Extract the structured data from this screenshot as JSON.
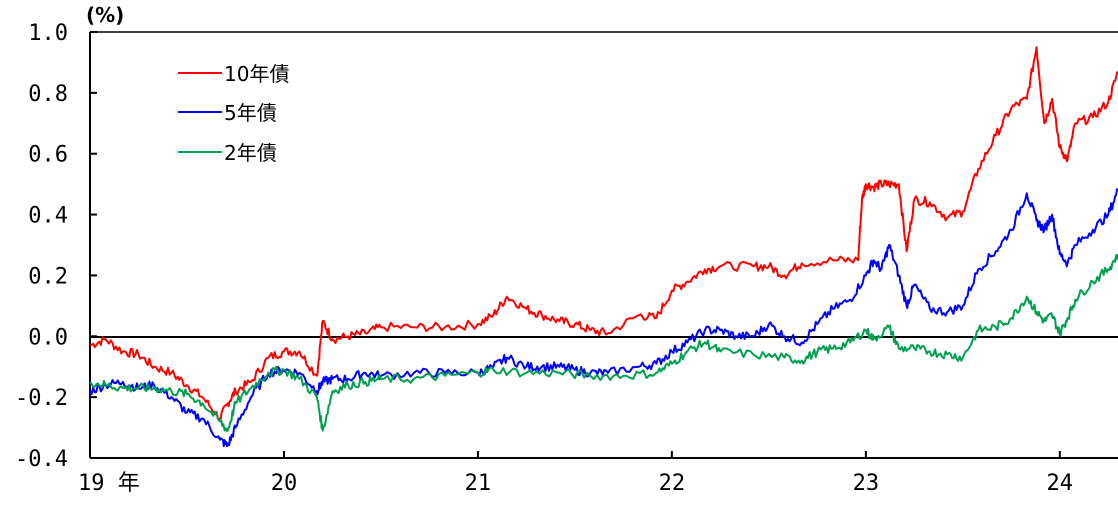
{
  "chart_data": {
    "type": "line",
    "ylabel": "(%)",
    "xlabel": "",
    "ylim": [
      -0.4,
      1.0
    ],
    "yticks": [
      "1.0",
      "0.8",
      "0.6",
      "0.4",
      "0.2",
      "0.0",
      "-0.2",
      "-0.4"
    ],
    "xlim": [
      2019.0,
      2024.3
    ],
    "xticks": [
      "19 年",
      "20",
      "21",
      "22",
      "23",
      "24"
    ],
    "grid": false,
    "zero_line": true,
    "legend_position": "top-left",
    "series": [
      {
        "name": "10年債",
        "color": "#ff0000",
        "x": [
          2019.0,
          2019.08,
          2019.17,
          2019.25,
          2019.33,
          2019.42,
          2019.5,
          2019.58,
          2019.67,
          2019.71,
          2019.75,
          2019.83,
          2019.92,
          2020.0,
          2020.08,
          2020.17,
          2020.2,
          2020.25,
          2020.33,
          2020.42,
          2020.5,
          2020.67,
          2020.83,
          2021.0,
          2021.08,
          2021.15,
          2021.25,
          2021.33,
          2021.42,
          2021.5,
          2021.58,
          2021.67,
          2021.83,
          2021.92,
          2022.0,
          2022.08,
          2022.17,
          2022.25,
          2022.42,
          2022.5,
          2022.58,
          2022.67,
          2022.83,
          2022.96,
          2022.98,
          2023.0,
          2023.04,
          2023.08,
          2023.12,
          2023.17,
          2023.21,
          2023.25,
          2023.33,
          2023.42,
          2023.5,
          2023.58,
          2023.67,
          2023.75,
          2023.83,
          2023.88,
          2023.92,
          2023.96,
          2024.0,
          2024.04,
          2024.08,
          2024.17,
          2024.25,
          2024.3
        ],
        "values": [
          -0.03,
          -0.01,
          -0.05,
          -0.06,
          -0.1,
          -0.12,
          -0.16,
          -0.2,
          -0.27,
          -0.22,
          -0.18,
          -0.15,
          -0.07,
          -0.05,
          -0.05,
          -0.13,
          0.05,
          -0.01,
          0.0,
          0.01,
          0.03,
          0.03,
          0.03,
          0.04,
          0.07,
          0.13,
          0.09,
          0.07,
          0.05,
          0.04,
          0.02,
          0.01,
          0.07,
          0.06,
          0.15,
          0.18,
          0.22,
          0.23,
          0.23,
          0.23,
          0.2,
          0.24,
          0.25,
          0.25,
          0.45,
          0.5,
          0.49,
          0.5,
          0.5,
          0.5,
          0.28,
          0.45,
          0.44,
          0.39,
          0.41,
          0.55,
          0.66,
          0.75,
          0.78,
          0.95,
          0.7,
          0.78,
          0.62,
          0.58,
          0.7,
          0.72,
          0.77,
          0.87
        ]
      },
      {
        "name": "5年債",
        "color": "#0000ff",
        "x": [
          2019.0,
          2019.08,
          2019.17,
          2019.25,
          2019.33,
          2019.42,
          2019.5,
          2019.58,
          2019.67,
          2019.71,
          2019.75,
          2019.83,
          2019.92,
          2020.0,
          2020.08,
          2020.17,
          2020.2,
          2020.25,
          2020.33,
          2020.42,
          2020.5,
          2020.67,
          2020.83,
          2021.0,
          2021.08,
          2021.15,
          2021.25,
          2021.33,
          2021.42,
          2021.5,
          2021.58,
          2021.67,
          2021.83,
          2021.92,
          2022.0,
          2022.08,
          2022.17,
          2022.25,
          2022.33,
          2022.42,
          2022.5,
          2022.58,
          2022.67,
          2022.75,
          2022.83,
          2022.92,
          2023.0,
          2023.04,
          2023.08,
          2023.12,
          2023.17,
          2023.21,
          2023.25,
          2023.33,
          2023.42,
          2023.5,
          2023.58,
          2023.67,
          2023.75,
          2023.83,
          2023.88,
          2023.92,
          2023.96,
          2024.0,
          2024.04,
          2024.08,
          2024.17,
          2024.25,
          2024.3
        ],
        "values": [
          -0.18,
          -0.16,
          -0.15,
          -0.17,
          -0.16,
          -0.2,
          -0.25,
          -0.27,
          -0.34,
          -0.36,
          -0.3,
          -0.2,
          -0.12,
          -0.11,
          -0.12,
          -0.18,
          -0.15,
          -0.14,
          -0.14,
          -0.12,
          -0.13,
          -0.12,
          -0.12,
          -0.12,
          -0.1,
          -0.07,
          -0.1,
          -0.1,
          -0.1,
          -0.11,
          -0.12,
          -0.12,
          -0.1,
          -0.09,
          -0.05,
          -0.02,
          0.02,
          0.02,
          0.0,
          0.0,
          0.04,
          0.0,
          -0.02,
          0.04,
          0.09,
          0.12,
          0.2,
          0.25,
          0.22,
          0.3,
          0.2,
          0.1,
          0.17,
          0.09,
          0.08,
          0.1,
          0.22,
          0.28,
          0.35,
          0.47,
          0.38,
          0.35,
          0.4,
          0.27,
          0.24,
          0.3,
          0.35,
          0.4,
          0.48
        ]
      },
      {
        "name": "2年債",
        "color": "#00a050",
        "x": [
          2019.0,
          2019.08,
          2019.17,
          2019.25,
          2019.33,
          2019.42,
          2019.5,
          2019.58,
          2019.67,
          2019.71,
          2019.75,
          2019.83,
          2019.92,
          2020.0,
          2020.08,
          2020.17,
          2020.2,
          2020.25,
          2020.33,
          2020.42,
          2020.5,
          2020.67,
          2020.83,
          2021.0,
          2021.08,
          2021.25,
          2021.42,
          2021.58,
          2021.75,
          2021.92,
          2022.0,
          2022.08,
          2022.17,
          2022.25,
          2022.42,
          2022.58,
          2022.67,
          2022.75,
          2022.83,
          2022.92,
          2023.0,
          2023.04,
          2023.12,
          2023.17,
          2023.25,
          2023.33,
          2023.42,
          2023.5,
          2023.58,
          2023.67,
          2023.75,
          2023.83,
          2023.88,
          2023.92,
          2023.96,
          2024.0,
          2024.04,
          2024.08,
          2024.17,
          2024.25,
          2024.3
        ],
        "values": [
          -0.15,
          -0.16,
          -0.17,
          -0.17,
          -0.17,
          -0.18,
          -0.19,
          -0.22,
          -0.28,
          -0.31,
          -0.22,
          -0.17,
          -0.12,
          -0.11,
          -0.14,
          -0.2,
          -0.31,
          -0.18,
          -0.16,
          -0.15,
          -0.14,
          -0.14,
          -0.13,
          -0.12,
          -0.11,
          -0.12,
          -0.12,
          -0.13,
          -0.13,
          -0.12,
          -0.09,
          -0.05,
          -0.02,
          -0.05,
          -0.06,
          -0.07,
          -0.08,
          -0.05,
          -0.04,
          -0.02,
          0.02,
          -0.01,
          0.03,
          -0.04,
          -0.04,
          -0.05,
          -0.06,
          -0.07,
          0.02,
          0.03,
          0.06,
          0.13,
          0.08,
          0.05,
          0.07,
          0.01,
          0.06,
          0.12,
          0.18,
          0.22,
          0.27
        ]
      }
    ]
  }
}
